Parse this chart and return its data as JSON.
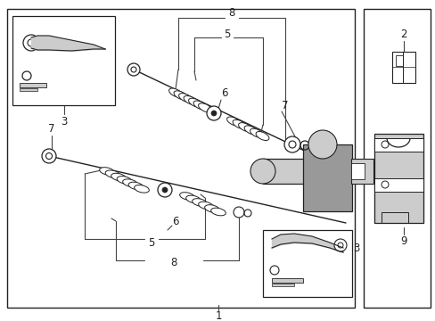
{
  "background_color": "#ffffff",
  "line_color": "#444444",
  "dark_color": "#222222",
  "gray_color": "#999999",
  "light_gray": "#cccccc",
  "fig_width": 4.89,
  "fig_height": 3.6,
  "dpi": 100
}
